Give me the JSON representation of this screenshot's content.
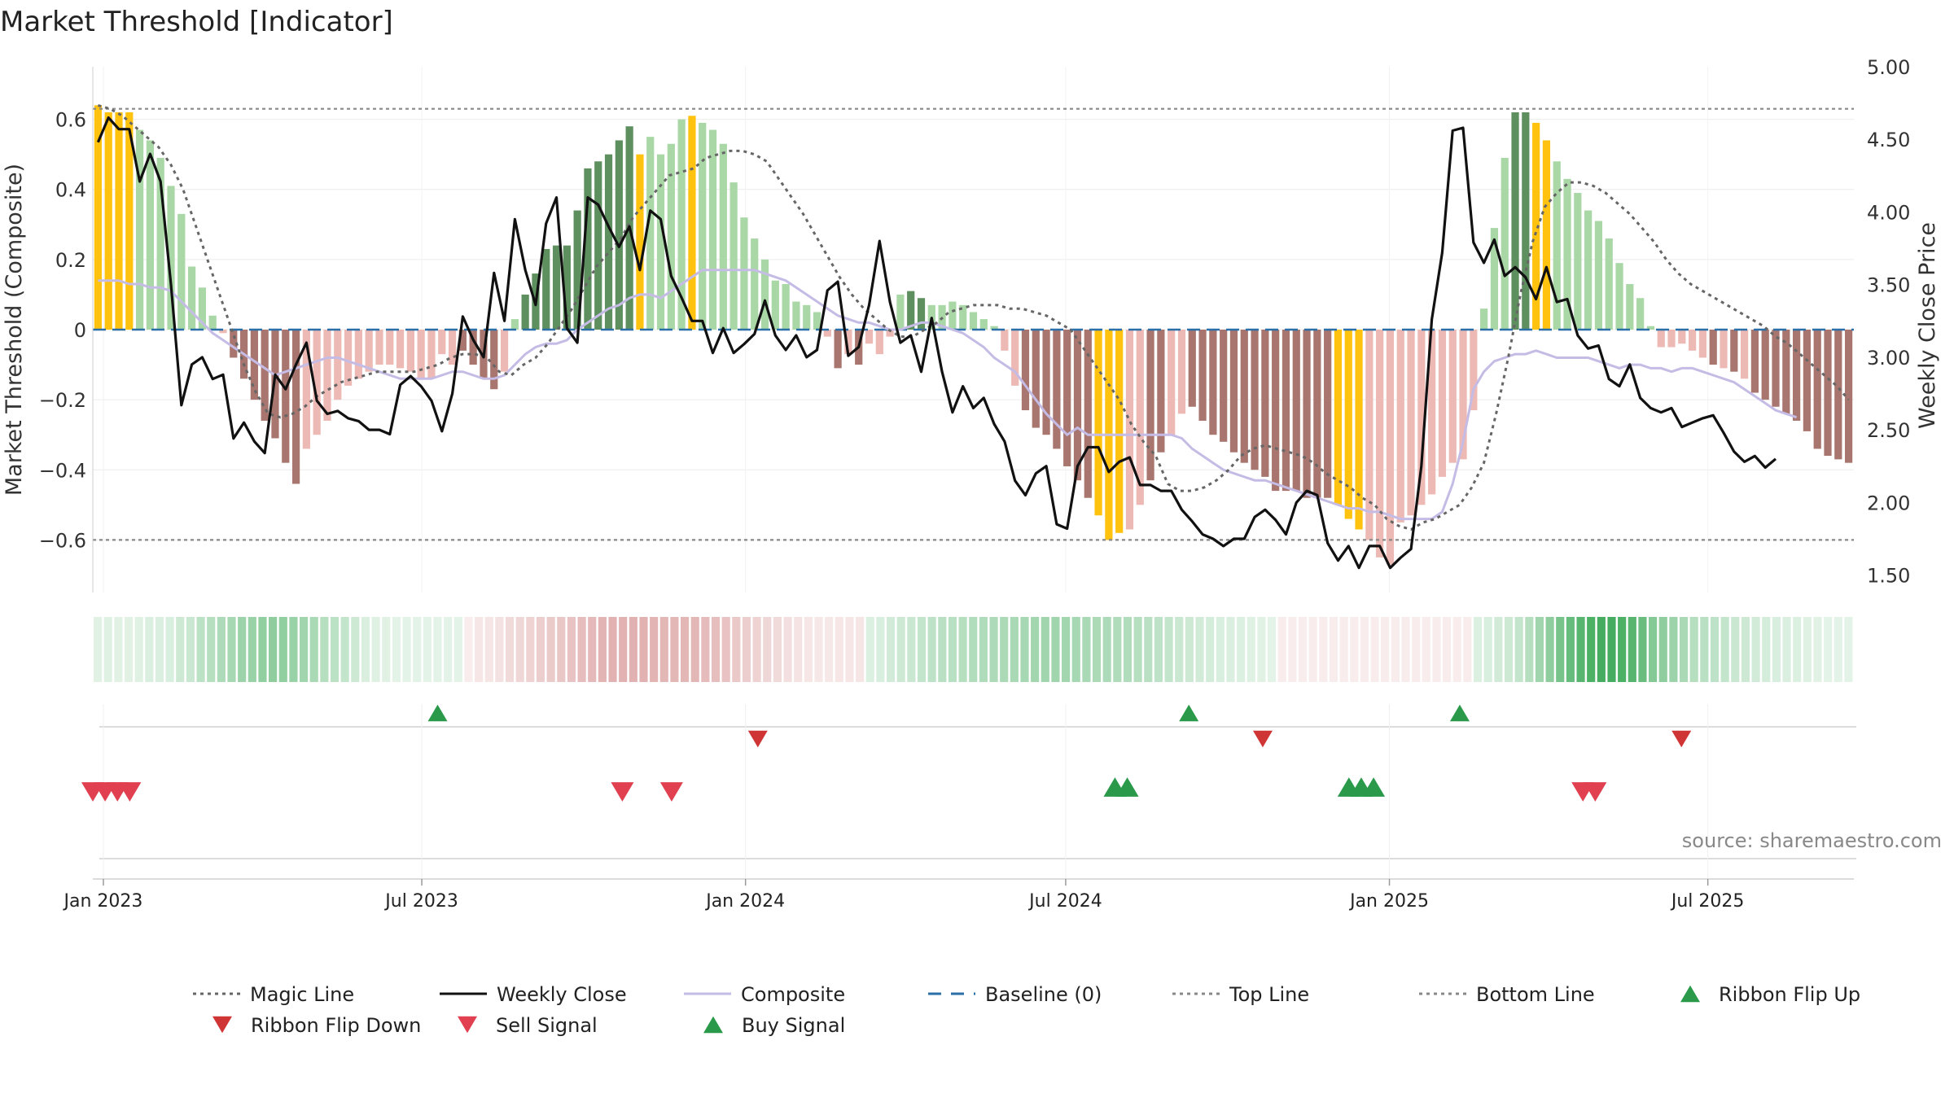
{
  "title": "Market Threshold [Indicator]",
  "source": "source: sharemaestro.com",
  "colors": {
    "bar_gold": "#ffc20e",
    "bar_green_dark": "#5e8f5e",
    "bar_green_light": "#a9d8a6",
    "bar_red_dark": "#a8766f",
    "bar_red_light": "#edb9b4",
    "magic_line": "#666666",
    "weekly_close": "#111111",
    "composite": "#c5bce6",
    "baseline": "#2b6fa8",
    "threshold_lines": "#888888",
    "ribbon_flip_up": "#2a9a4a",
    "ribbon_flip_down": "#d03535",
    "sell_signal": "#e04050",
    "buy_signal": "#2a9a4a"
  },
  "chart_data": {
    "type": "bar",
    "title": "Market Threshold [Indicator]",
    "ylabel": "Market Threshold (Composite)",
    "y2label": "Weekly Close Price",
    "ylim": [
      -0.75,
      0.75
    ],
    "y2lim": [
      1.38,
      5.0
    ],
    "yticks": [
      -0.6,
      -0.4,
      -0.2,
      0,
      0.2,
      0.4,
      0.6
    ],
    "yticklabels": [
      "−0.6",
      "−0.4",
      "−0.2",
      "0",
      "0.2",
      "0.4",
      "0.6"
    ],
    "y2ticks": [
      1.5,
      2.0,
      2.5,
      3.0,
      3.5,
      4.0,
      4.5,
      5.0
    ],
    "y2ticklabels": [
      "1.50",
      "2.00",
      "2.50",
      "3.00",
      "3.50",
      "4.00",
      "4.50",
      "5.00"
    ],
    "x_start": "2022-12-26",
    "x_end": "2025-09-22",
    "x_step": "1 week",
    "xticks": [
      "Jan 2023",
      "Jul 2023",
      "Jan 2024",
      "Jul 2024",
      "Jan 2025",
      "Jul 2025"
    ],
    "top_line": 0.63,
    "bottom_line": -0.6,
    "baseline": 0,
    "grid": true,
    "legend_position": "bottom",
    "composite_values": [
      0.64,
      0.62,
      0.62,
      0.62,
      0.57,
      0.54,
      0.49,
      0.41,
      0.33,
      0.18,
      0.12,
      0.04,
      -0.01,
      -0.08,
      -0.14,
      -0.2,
      -0.26,
      -0.31,
      -0.38,
      -0.44,
      -0.34,
      -0.3,
      -0.26,
      -0.2,
      -0.16,
      -0.14,
      -0.12,
      -0.1,
      -0.1,
      -0.11,
      -0.12,
      -0.14,
      -0.14,
      -0.07,
      -0.1,
      -0.06,
      -0.1,
      -0.14,
      -0.17,
      -0.12,
      0.03,
      0.1,
      0.16,
      0.23,
      0.24,
      0.24,
      0.34,
      0.46,
      0.48,
      0.5,
      0.54,
      0.58,
      0.5,
      0.55,
      0.5,
      0.53,
      0.6,
      0.61,
      0.59,
      0.57,
      0.53,
      0.42,
      0.32,
      0.26,
      0.2,
      0.14,
      0.13,
      0.08,
      0.07,
      0.05,
      -0.02,
      -0.11,
      -0.07,
      -0.1,
      -0.04,
      -0.07,
      -0.02,
      0.1,
      0.11,
      0.09,
      0.07,
      0.07,
      0.08,
      0.07,
      0.05,
      0.03,
      0.01,
      -0.06,
      -0.16,
      -0.23,
      -0.28,
      -0.3,
      -0.34,
      -0.39,
      -0.43,
      -0.48,
      -0.53,
      -0.6,
      -0.58,
      -0.57,
      -0.5,
      -0.43,
      -0.35,
      -0.3,
      -0.24,
      -0.22,
      -0.26,
      -0.3,
      -0.32,
      -0.35,
      -0.38,
      -0.4,
      -0.42,
      -0.46,
      -0.46,
      -0.46,
      -0.48,
      -0.48,
      -0.48,
      -0.5,
      -0.54,
      -0.57,
      -0.6,
      -0.65,
      -0.67,
      -0.55,
      -0.53,
      -0.5,
      -0.47,
      -0.42,
      -0.38,
      -0.37,
      -0.23,
      0.06,
      0.29,
      0.49,
      0.62,
      0.62,
      0.59,
      0.54,
      0.48,
      0.43,
      0.39,
      0.34,
      0.31,
      0.26,
      0.19,
      0.13,
      0.09,
      0.01,
      -0.05,
      -0.05,
      -0.04,
      -0.06,
      -0.08,
      -0.1,
      -0.11,
      -0.12,
      -0.14,
      -0.18,
      -0.2,
      -0.22,
      -0.24,
      -0.26,
      -0.29,
      -0.34,
      -0.36,
      -0.37,
      -0.38
    ],
    "bar_tone": [
      "gold",
      "gold",
      "gold",
      "gold",
      "light",
      "light",
      "light",
      "light",
      "light",
      "light",
      "light",
      "light",
      "light",
      "dark",
      "dark",
      "dark",
      "dark",
      "dark",
      "dark",
      "dark",
      "light",
      "light",
      "light",
      "light",
      "light",
      "light",
      "light",
      "light",
      "light",
      "light",
      "light",
      "light",
      "light",
      "light",
      "light",
      "dark",
      "dark",
      "dark",
      "dark",
      "light",
      "light",
      "dark",
      "dark",
      "dark",
      "dark",
      "dark",
      "dark",
      "dark",
      "dark",
      "dark",
      "dark",
      "dark",
      "gold",
      "light",
      "light",
      "light",
      "light",
      "gold",
      "light",
      "light",
      "light",
      "light",
      "light",
      "light",
      "light",
      "light",
      "light",
      "light",
      "light",
      "light",
      "light",
      "dark",
      "light",
      "dark",
      "light",
      "light",
      "light",
      "light",
      "dark",
      "dark",
      "light",
      "light",
      "light",
      "light",
      "light",
      "light",
      "light",
      "light",
      "light",
      "dark",
      "dark",
      "dark",
      "dark",
      "dark",
      "dark",
      "dark",
      "gold",
      "gold",
      "gold",
      "light",
      "light",
      "dark",
      "dark",
      "light",
      "light",
      "dark",
      "dark",
      "dark",
      "dark",
      "dark",
      "dark",
      "dark",
      "dark",
      "dark",
      "dark",
      "dark",
      "dark",
      "dark",
      "dark",
      "gold",
      "gold",
      "gold",
      "light",
      "light",
      "light",
      "light",
      "light",
      "light",
      "light",
      "light",
      "light",
      "light",
      "light",
      "light",
      "light",
      "light",
      "dark",
      "dark",
      "gold",
      "gold",
      "light",
      "light",
      "light",
      "light",
      "light",
      "light",
      "light",
      "light",
      "light",
      "light",
      "light",
      "light",
      "light",
      "light",
      "light",
      "dark",
      "light",
      "dark",
      "light",
      "dark",
      "dark",
      "dark",
      "dark",
      "dark",
      "dark",
      "dark",
      "dark",
      "dark",
      "dark"
    ],
    "weekly_close": [
      4.48,
      4.65,
      4.57,
      4.57,
      4.21,
      4.4,
      4.21,
      3.5,
      2.67,
      2.95,
      3.0,
      2.85,
      2.88,
      2.44,
      2.55,
      2.42,
      2.34,
      2.88,
      2.78,
      2.95,
      3.1,
      2.7,
      2.61,
      2.63,
      2.58,
      2.56,
      2.5,
      2.5,
      2.47,
      2.81,
      2.87,
      2.8,
      2.7,
      2.49,
      2.75,
      3.28,
      3.12,
      3.0,
      3.58,
      3.25,
      3.95,
      3.6,
      3.36,
      3.92,
      4.1,
      3.2,
      3.1,
      4.1,
      4.05,
      3.9,
      3.76,
      3.9,
      3.6,
      4.01,
      3.95,
      3.56,
      3.41,
      3.25,
      3.25,
      3.03,
      3.2,
      3.03,
      3.09,
      3.16,
      3.39,
      3.15,
      3.05,
      3.15,
      3.0,
      3.05,
      3.46,
      3.52,
      3.01,
      3.07,
      3.36,
      3.8,
      3.38,
      3.1,
      3.15,
      2.9,
      3.27,
      2.9,
      2.62,
      2.8,
      2.65,
      2.72,
      2.54,
      2.42,
      2.15,
      2.05,
      2.2,
      2.25,
      1.85,
      1.82,
      2.25,
      2.38,
      2.38,
      2.21,
      2.28,
      2.31,
      2.12,
      2.12,
      2.08,
      2.08,
      1.95,
      1.87,
      1.78,
      1.75,
      1.7,
      1.75,
      1.75,
      1.9,
      1.95,
      1.88,
      1.78,
      2.0,
      2.08,
      2.05,
      1.72,
      1.6,
      1.7,
      1.55,
      1.7,
      1.7,
      1.55,
      1.62,
      1.68,
      2.25,
      3.26,
      3.72,
      4.56,
      4.58,
      3.79,
      3.65,
      3.81,
      3.56,
      3.62,
      3.55,
      3.4,
      3.62,
      3.38,
      3.4,
      3.15,
      3.06,
      3.08,
      2.85,
      2.8,
      2.95,
      2.72,
      2.65,
      2.62,
      2.65,
      2.52,
      2.55,
      2.58,
      2.6,
      2.48,
      2.35,
      2.28,
      2.32,
      2.24,
      2.3
    ],
    "composite": [
      0.14,
      0.14,
      0.14,
      0.13,
      0.13,
      0.12,
      0.12,
      0.11,
      0.08,
      0.05,
      0.02,
      -0.01,
      -0.03,
      -0.05,
      -0.07,
      -0.09,
      -0.11,
      -0.13,
      -0.12,
      -0.11,
      -0.1,
      -0.09,
      -0.08,
      -0.08,
      -0.09,
      -0.1,
      -0.11,
      -0.12,
      -0.13,
      -0.14,
      -0.14,
      -0.14,
      -0.14,
      -0.13,
      -0.12,
      -0.12,
      -0.13,
      -0.14,
      -0.14,
      -0.13,
      -0.1,
      -0.07,
      -0.05,
      -0.04,
      -0.04,
      -0.03,
      0.0,
      0.02,
      0.04,
      0.06,
      0.07,
      0.09,
      0.1,
      0.1,
      0.09,
      0.11,
      0.13,
      0.15,
      0.17,
      0.17,
      0.17,
      0.17,
      0.17,
      0.17,
      0.16,
      0.15,
      0.14,
      0.12,
      0.1,
      0.08,
      0.06,
      0.04,
      0.03,
      0.02,
      0.02,
      0.01,
      0.0,
      0.0,
      0.01,
      0.02,
      0.02,
      0.01,
      0.0,
      -0.01,
      -0.03,
      -0.05,
      -0.08,
      -0.1,
      -0.12,
      -0.16,
      -0.2,
      -0.24,
      -0.27,
      -0.3,
      -0.28,
      -0.3,
      -0.3,
      -0.3,
      -0.3,
      -0.3,
      -0.3,
      -0.3,
      -0.3,
      -0.3,
      -0.31,
      -0.34,
      -0.36,
      -0.38,
      -0.4,
      -0.41,
      -0.42,
      -0.43,
      -0.43,
      -0.44,
      -0.45,
      -0.46,
      -0.47,
      -0.48,
      -0.49,
      -0.5,
      -0.51,
      -0.51,
      -0.52,
      -0.52,
      -0.53,
      -0.54,
      -0.54,
      -0.54,
      -0.54,
      -0.52,
      -0.44,
      -0.32,
      -0.17,
      -0.12,
      -0.09,
      -0.08,
      -0.07,
      -0.07,
      -0.06,
      -0.07,
      -0.08,
      -0.08,
      -0.08,
      -0.08,
      -0.09,
      -0.1,
      -0.11,
      -0.1,
      -0.1,
      -0.11,
      -0.11,
      -0.12,
      -0.11,
      -0.11,
      -0.12,
      -0.13,
      -0.14,
      -0.15,
      -0.17,
      -0.19,
      -0.21,
      -0.23,
      -0.24,
      -0.25
    ],
    "magic_line": [
      0.64,
      0.63,
      0.61,
      0.58,
      0.55,
      0.52,
      0.47,
      0.4,
      0.3,
      0.2,
      0.1,
      0.0,
      -0.1,
      -0.18,
      -0.24,
      -0.25,
      -0.24,
      -0.22,
      -0.19,
      -0.17,
      -0.15,
      -0.14,
      -0.13,
      -0.12,
      -0.12,
      -0.12,
      -0.12,
      -0.11,
      -0.1,
      -0.08,
      -0.07,
      -0.07,
      -0.08,
      -0.12,
      -0.13,
      -0.1,
      -0.08,
      -0.04,
      0.01,
      0.06,
      0.12,
      0.18,
      0.22,
      0.26,
      0.32,
      0.36,
      0.4,
      0.44,
      0.45,
      0.46,
      0.49,
      0.5,
      0.51,
      0.51,
      0.5,
      0.48,
      0.43,
      0.38,
      0.33,
      0.27,
      0.21,
      0.15,
      0.1,
      0.06,
      0.03,
      0.0,
      -0.02,
      -0.02,
      0.0,
      0.02,
      0.05,
      0.06,
      0.07,
      0.07,
      0.07,
      0.06,
      0.06,
      0.05,
      0.04,
      0.02,
      0.0,
      -0.05,
      -0.1,
      -0.15,
      -0.2,
      -0.27,
      -0.32,
      -0.36,
      -0.44,
      -0.46,
      -0.46,
      -0.45,
      -0.43,
      -0.4,
      -0.36,
      -0.34,
      -0.33,
      -0.34,
      -0.35,
      -0.36,
      -0.38,
      -0.41,
      -0.43,
      -0.45,
      -0.48,
      -0.5,
      -0.54,
      -0.56,
      -0.57,
      -0.55,
      -0.54,
      -0.52,
      -0.5,
      -0.45,
      -0.38,
      -0.24,
      -0.08,
      0.1,
      0.25,
      0.35,
      0.39,
      0.42,
      0.42,
      0.41,
      0.39,
      0.36,
      0.33,
      0.29,
      0.25,
      0.2,
      0.16,
      0.13,
      0.11,
      0.09,
      0.07,
      0.05,
      0.03,
      0.01,
      -0.02,
      -0.04,
      -0.07,
      -0.1,
      -0.13,
      -0.16,
      -0.2
    ],
    "magic_line_start_index": 0,
    "ribbon": [
      0.12,
      0.13,
      0.12,
      0.12,
      0.13,
      0.15,
      0.15,
      0.16,
      0.2,
      0.22,
      0.27,
      0.3,
      0.33,
      0.36,
      0.4,
      0.42,
      0.44,
      0.45,
      0.44,
      0.42,
      0.38,
      0.35,
      0.3,
      0.27,
      0.24,
      0.2,
      0.15,
      0.13,
      0.12,
      0.11,
      0.11,
      0.11,
      0.11,
      0.11,
      0.11,
      0.11,
      -0.1,
      -0.12,
      -0.13,
      -0.15,
      -0.18,
      -0.2,
      -0.22,
      -0.24,
      -0.26,
      -0.28,
      -0.3,
      -0.33,
      -0.35,
      -0.37,
      -0.38,
      -0.38,
      -0.38,
      -0.38,
      -0.37,
      -0.36,
      -0.36,
      -0.36,
      -0.36,
      -0.34,
      -0.32,
      -0.3,
      -0.27,
      -0.24,
      -0.22,
      -0.2,
      -0.18,
      -0.16,
      -0.14,
      -0.12,
      -0.11,
      -0.11,
      -0.12,
      -0.12,
      -0.13,
      0.14,
      0.16,
      0.18,
      0.2,
      0.22,
      0.24,
      0.26,
      0.28,
      0.29,
      0.3,
      0.31,
      0.32,
      0.33,
      0.34,
      0.35,
      0.36,
      0.37,
      0.38,
      0.38,
      0.37,
      0.36,
      0.35,
      0.34,
      0.33,
      0.32,
      0.31,
      0.3,
      0.28,
      0.26,
      0.24,
      0.22,
      0.2,
      0.18,
      0.17,
      0.16,
      0.15,
      0.14,
      0.13,
      0.12,
      0.11,
      -0.1,
      -0.1,
      -0.1,
      -0.1,
      -0.1,
      -0.1,
      -0.1,
      -0.1,
      -0.1,
      -0.1,
      -0.1,
      -0.1,
      -0.1,
      -0.1,
      -0.1,
      -0.1,
      -0.1,
      -0.1,
      -0.1,
      0.14,
      0.16,
      0.18,
      0.2,
      0.24,
      0.3,
      0.38,
      0.45,
      0.55,
      0.62,
      0.68,
      0.72,
      0.75,
      0.75,
      0.72,
      0.68,
      0.6,
      0.5,
      0.45,
      0.4,
      0.35,
      0.3,
      0.28,
      0.26,
      0.24,
      0.22,
      0.2,
      0.18,
      0.17,
      0.16,
      0.15,
      0.14,
      0.13,
      0.12,
      0.11,
      0.11,
      0.11
    ],
    "ribbon_flip_up": [
      "2023-07-10",
      "2024-09-09",
      "2025-02-10"
    ],
    "ribbon_flip_down": [
      "2024-01-08",
      "2024-10-21",
      "2025-06-16"
    ],
    "sell_signal": [
      "2022-12-26",
      "2023-01-02",
      "2023-01-09",
      "2023-01-16",
      "2023-10-23",
      "2023-11-20",
      "2025-04-21",
      "2025-04-28"
    ],
    "buy_signal": [
      "2024-07-29",
      "2024-08-05",
      "2024-12-09",
      "2024-12-16",
      "2024-12-23"
    ],
    "legend": [
      {
        "key": "magic_line",
        "label": "Magic Line",
        "style": "dotted-line"
      },
      {
        "key": "weekly_close",
        "label": "Weekly Close",
        "style": "solid-line"
      },
      {
        "key": "composite",
        "label": "Composite",
        "style": "solid-line"
      },
      {
        "key": "baseline",
        "label": "Baseline (0)",
        "style": "dashed-line"
      },
      {
        "key": "threshold_lines",
        "label": "Top Line",
        "style": "dotted-line"
      },
      {
        "key": "threshold_lines",
        "label": "Bottom Line",
        "style": "dotted-line"
      },
      {
        "key": "ribbon_flip_up",
        "label": "Ribbon Flip Up",
        "style": "triangle-up"
      },
      {
        "key": "ribbon_flip_down",
        "label": "Ribbon Flip Down",
        "style": "triangle-down"
      },
      {
        "key": "sell_signal",
        "label": "Sell Signal",
        "style": "triangle-down"
      },
      {
        "key": "buy_signal",
        "label": "Buy Signal",
        "style": "triangle-up"
      }
    ]
  }
}
